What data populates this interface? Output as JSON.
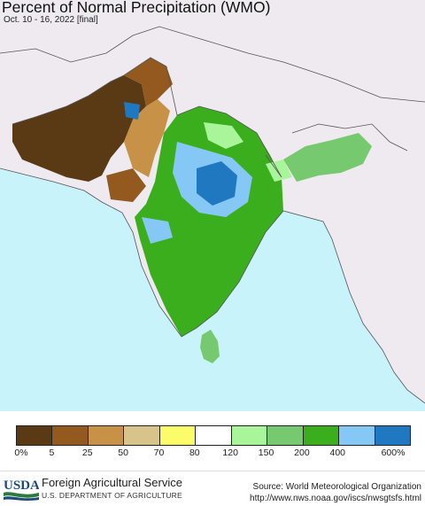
{
  "header": {
    "title": "Percent of Normal Precipitation (WMO)",
    "subtitle": "Oct. 10 - 16, 2022 [final]"
  },
  "map": {
    "region": "South Asia",
    "colors": {
      "ocean": "#c9f3fb",
      "outside_land": "#eeeaf0",
      "border": "#555555"
    }
  },
  "legend": {
    "swatches": [
      {
        "color": "#5a3a14"
      },
      {
        "color": "#93591f"
      },
      {
        "color": "#c79248"
      },
      {
        "color": "#d8c48a"
      },
      {
        "color": "#fafc6a"
      },
      {
        "color": "#ffffff"
      },
      {
        "color": "#a8f59a"
      },
      {
        "color": "#76c96e"
      },
      {
        "color": "#3aae1c"
      },
      {
        "color": "#86c8f5"
      },
      {
        "color": "#1f78c0"
      }
    ],
    "labels": [
      "0%",
      "5",
      "25",
      "50",
      "70",
      "80",
      "120",
      "150",
      "200",
      "400",
      "600%"
    ]
  },
  "footer": {
    "logo_text": "USDA",
    "agency": "Foreign Agricultural Service",
    "department": "U.S. DEPARTMENT OF AGRICULTURE",
    "source_line1": "Source: World Meteorological Organization",
    "source_line2": "http://www.nws.noaa.gov/iscs/nwsgtsfs.html"
  }
}
